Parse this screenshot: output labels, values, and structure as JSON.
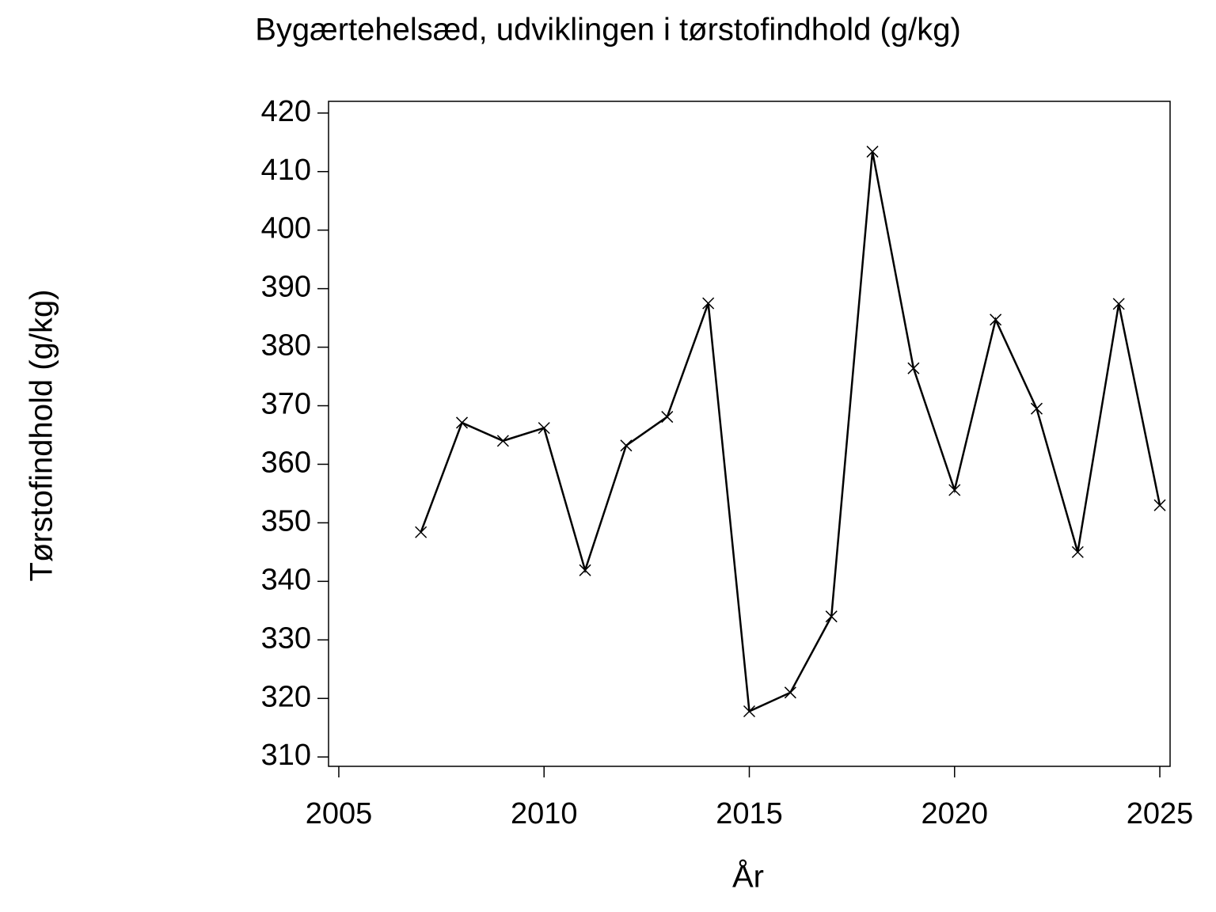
{
  "chart_data": {
    "type": "line",
    "title": "Bygærtehelsæd,  udviklingen  i  tørstofindhold  (g/kg)",
    "x_label": "År",
    "y_label": "Tørstofindhold  (g/kg)",
    "x": [
      2007,
      2008,
      2009,
      2010,
      2011,
      2012,
      2013,
      2014,
      2015,
      2016,
      2017,
      2018,
      2019,
      2020,
      2021,
      2022,
      2023,
      2024,
      2025
    ],
    "series": [
      {
        "color": "#000000",
        "values": [
          348.4,
          367.1,
          364,
          366.2,
          341.9,
          363.2,
          368.1,
          387.5,
          317.8,
          321,
          334,
          413.4,
          376.4,
          355.6,
          384.7,
          369.5,
          345,
          387.4,
          353
        ]
      }
    ],
    "xlim": [
      2004.75,
      2025.25
    ],
    "xticks": [
      2005,
      2010,
      2015,
      2020,
      2025
    ],
    "ylim": [
      308.4,
      422
    ],
    "yticks": [
      310,
      320,
      330,
      340,
      350,
      360,
      370,
      380,
      390,
      400,
      410,
      420
    ],
    "grid": false
  }
}
